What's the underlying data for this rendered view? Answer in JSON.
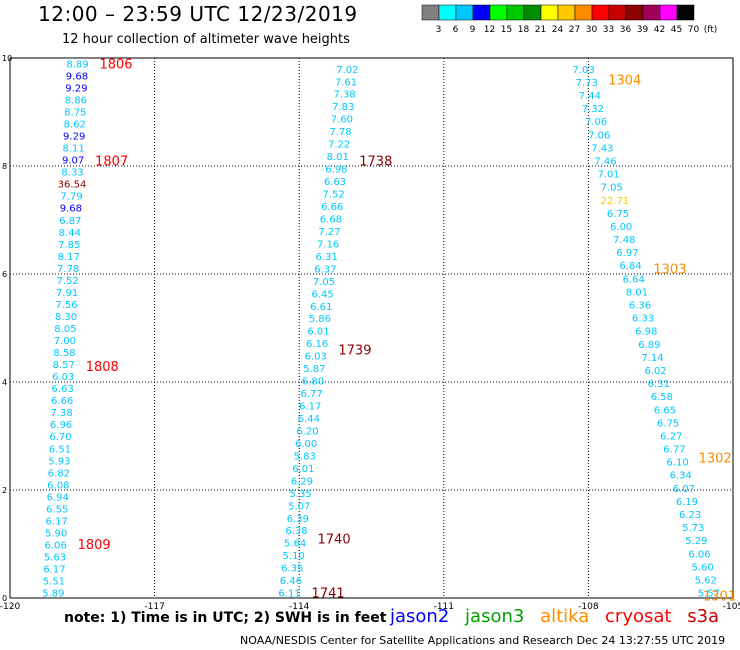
{
  "header": {
    "title": "12:00 – 23:59 UTC 12/23/2019",
    "subtitle": "12 hour collection of altimeter wave heights"
  },
  "color_scale": {
    "labels": [
      "3",
      "6",
      "9",
      "12",
      "15",
      "18",
      "21",
      "24",
      "27",
      "30",
      "33",
      "36",
      "39",
      "42",
      "45",
      "70",
      "(ft)"
    ],
    "colors": [
      "#808080",
      "#00ffff",
      "#00c8ff",
      "#0000ff",
      "#00ff00",
      "#00c800",
      "#008c00",
      "#ffff00",
      "#ffc800",
      "#ff8c00",
      "#ff0000",
      "#c80000",
      "#8b0000",
      "#a0005a",
      "#ff00ff",
      "#000000"
    ]
  },
  "footer": {
    "note": "note: 1) Time is in UTC; 2) SWH is in feet",
    "satellites": [
      {
        "name": "jason2",
        "color": "#0000ff"
      },
      {
        "name": "jason3",
        "color": "#00a000"
      },
      {
        "name": "altika",
        "color": "#ff8c00"
      },
      {
        "name": "cryosat",
        "color": "#ff0000"
      },
      {
        "name": "s3a",
        "color": "#c80000"
      }
    ],
    "credit": "NOAA/NESDIS Center for Satellite Applications and Research    Dec 24 13:27:55 UTC 2019"
  },
  "chart_data": {
    "type": "scatter",
    "xlim": [
      -120,
      -105
    ],
    "ylim": [
      0,
      10
    ],
    "x_ticks": [
      "-120",
      "-117",
      "-114",
      "-111",
      "-108",
      "-105"
    ],
    "y_ticks": [
      "0",
      "2",
      "4",
      "6",
      "8",
      "10"
    ],
    "grid": true,
    "tracks": [
      {
        "x0": -118.6,
        "y0": 9.9,
        "x1": -119.1,
        "y1": 0.1,
        "color": "#00c8ff",
        "values": [
          "8.89",
          "9.68",
          "9.29",
          "8.86",
          "8.75",
          "8.62",
          "9.29",
          "8.11",
          "9.07",
          "8.33",
          "36.54",
          "7.79",
          "9.68",
          "6.87",
          "8.44",
          "7.85",
          "8.17",
          "7.78",
          "7.52",
          "7.91",
          "7.56",
          "8.30",
          "8.05",
          "7.00",
          "8.58",
          "8.57",
          "6.03",
          "6.63",
          "6.66",
          "7.38",
          "6.96",
          "6.70",
          "6.51",
          "5.93",
          "6.82",
          "6.08",
          "6.94",
          "6.55",
          "6.17",
          "5.90",
          "6.06",
          "5.63",
          "6.17",
          "5.51",
          "5.89"
        ],
        "value_colors": {
          "1": "#0000ff",
          "2": "#0000ff",
          "6": "#0000ff",
          "8": "#0000ff",
          "10": "#8b0000",
          "12": "#0000ff"
        },
        "time_labels": [
          {
            "text": "1806",
            "y": 9.9,
            "color": "#ff0000"
          },
          {
            "text": "1807",
            "y": 8.1,
            "color": "#ff0000"
          },
          {
            "text": "1808",
            "y": 4.3,
            "color": "#ff0000"
          },
          {
            "text": "1809",
            "y": 1.0,
            "color": "#ff0000"
          }
        ]
      },
      {
        "x0": -113.0,
        "y0": 9.8,
        "x1": -114.2,
        "y1": 0.1,
        "color": "#00c8ff",
        "values": [
          "7.02",
          "7.61",
          "7.38",
          "7.83",
          "7.60",
          "7.78",
          "7.22",
          "8.01",
          "6.98",
          "6.63",
          "7.52",
          "6.66",
          "6.68",
          "7.27",
          "7.16",
          "6.31",
          "6.37",
          "7.05",
          "6.45",
          "6.61",
          "5.86",
          "6.01",
          "6.16",
          "6.03",
          "5.87",
          "6.80",
          "6.77",
          "6.17",
          "6.44",
          "6.20",
          "6.00",
          "5.83",
          "6.01",
          "6.29",
          "5.35",
          "5.07",
          "6.39",
          "6.38",
          "5.64",
          "5.10",
          "6.35",
          "6.46",
          "6.11"
        ],
        "value_colors": {},
        "time_labels": [
          {
            "text": "1738",
            "y": 8.1,
            "color": "#8b0000"
          },
          {
            "text": "1739",
            "y": 4.6,
            "color": "#8b0000"
          },
          {
            "text": "1740",
            "y": 1.1,
            "color": "#8b0000"
          },
          {
            "text": "1741",
            "y": 0.1,
            "color": "#8b0000"
          }
        ]
      },
      {
        "x0": -108.1,
        "y0": 9.8,
        "x1": -105.5,
        "y1": 0.1,
        "color": "#00c8ff",
        "values": [
          "7.03",
          "7.73",
          "7.44",
          "7.32",
          "7.06",
          "7.06",
          "7.43",
          "7.46",
          "7.01",
          "7.05",
          "22.71",
          "6.75",
          "6.00",
          "7.48",
          "6.97",
          "6.84",
          "6.64",
          "8.01",
          "6.36",
          "6.33",
          "6.98",
          "6.89",
          "7.14",
          "6.02",
          "6.31",
          "6.58",
          "6.65",
          "6.75",
          "6.27",
          "6.77",
          "6.10",
          "6.34",
          "6.07",
          "6.19",
          "6.23",
          "5.73",
          "5.29",
          "6.06",
          "5.60",
          "5.62",
          "5.57"
        ],
        "value_colors": {
          "10": "#ffc800"
        },
        "time_labels": [
          {
            "text": "1304",
            "y": 9.6,
            "color": "#ff8c00"
          },
          {
            "text": "1303",
            "y": 6.1,
            "color": "#ff8c00"
          },
          {
            "text": "1302",
            "y": 2.6,
            "color": "#ff8c00"
          },
          {
            "text": "1301",
            "y": 0.05,
            "color": "#ff8c00"
          }
        ]
      }
    ]
  }
}
